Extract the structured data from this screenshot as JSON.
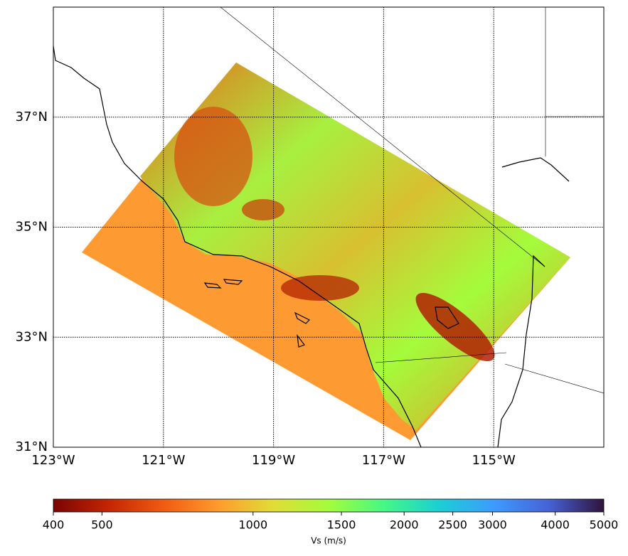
{
  "map": {
    "xlim": [
      -123,
      -113
    ],
    "ylim": [
      31,
      39
    ],
    "grid": true,
    "xticks": [
      {
        "value": -123,
        "label": "123°W"
      },
      {
        "value": -121,
        "label": "121°W"
      },
      {
        "value": -119,
        "label": "119°W"
      },
      {
        "value": -117,
        "label": "117°W"
      },
      {
        "value": -115,
        "label": "115°W"
      }
    ],
    "yticks": [
      {
        "value": 31,
        "label": "31°N"
      },
      {
        "value": 33,
        "label": "33°N"
      },
      {
        "value": 35,
        "label": "35°N"
      },
      {
        "value": 37,
        "label": "37°N"
      }
    ]
  },
  "colorbar": {
    "label": "Vs (m/s)",
    "lim": [
      400,
      5000
    ],
    "scale": "log",
    "ticks": [
      400,
      500,
      1000,
      1500,
      2000,
      2500,
      3000,
      4000,
      5000
    ],
    "colors": [
      "#7a0403",
      "#c42503",
      "#f05b12",
      "#fe9b2d",
      "#e1dd37",
      "#a4fc3c",
      "#46f884",
      "#1bcfd4",
      "#3e9bfe",
      "#4662d7",
      "#30123b"
    ]
  }
}
